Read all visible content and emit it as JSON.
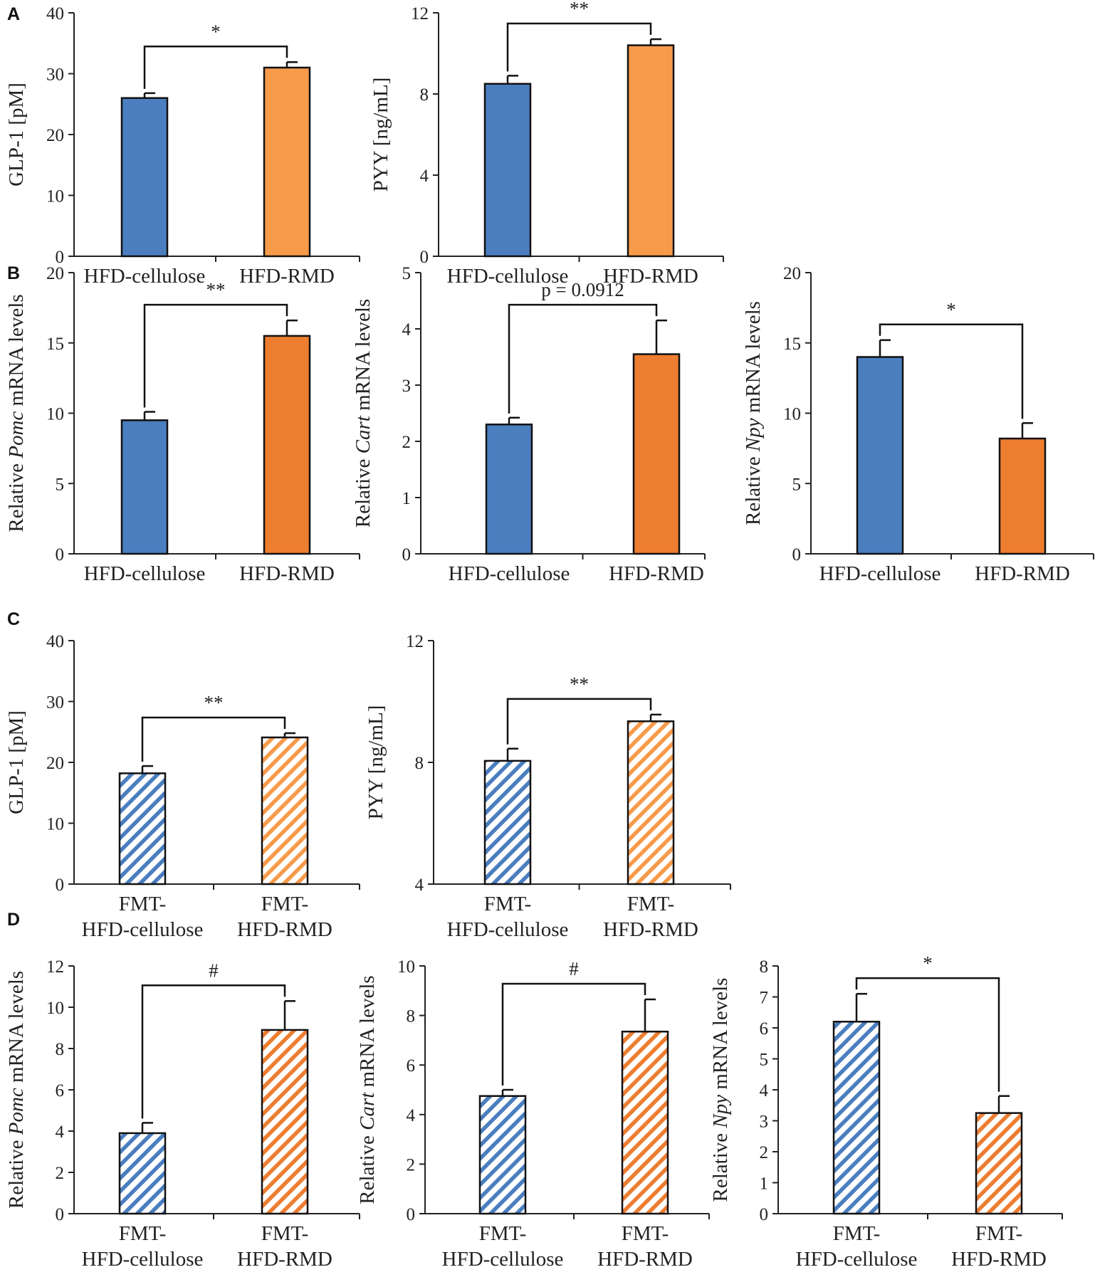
{
  "panel_labels": [
    "A",
    "B",
    "C",
    "D"
  ],
  "colors": {
    "blue": "#4a7ebf",
    "orange_light": "#f79a4a",
    "orange": "#ed7d31",
    "axis": "#000000"
  },
  "chart_data": [
    {
      "panel": "A",
      "type": "bar",
      "categories": [
        "HFD-cellulose",
        "HFD-RMD"
      ],
      "values": [
        26,
        31
      ],
      "errors": [
        0.8,
        0.9
      ],
      "fill": "solid",
      "colors": [
        "#4a7ebf",
        "#f79a4a"
      ],
      "ylabel": [
        "GLP-1 [pM]"
      ],
      "ylim": [
        0,
        40
      ],
      "yticks": [
        0,
        10,
        20,
        30,
        40
      ],
      "significance": "*",
      "sig_style": "bracket"
    },
    {
      "panel": "A",
      "type": "bar",
      "categories": [
        "HFD-cellulose",
        "HFD-RMD"
      ],
      "values": [
        8.5,
        10.4
      ],
      "errors": [
        0.4,
        0.3
      ],
      "fill": "solid",
      "colors": [
        "#4a7ebf",
        "#f79a4a"
      ],
      "ylabel": [
        "PYY [ng/mL]"
      ],
      "ylim": [
        0,
        12
      ],
      "yticks": [
        0,
        4,
        8,
        12
      ],
      "significance": "**",
      "sig_style": "bracket"
    },
    {
      "panel": "B",
      "type": "bar",
      "categories": [
        "HFD-cellulose",
        "HFD-RMD"
      ],
      "values": [
        9.5,
        15.5
      ],
      "errors": [
        0.6,
        1.1
      ],
      "fill": "solid",
      "colors": [
        "#4a7ebf",
        "#ed7d31"
      ],
      "ylabel": [
        "Relative ",
        "Pomc",
        " mRNA levels"
      ],
      "ylim": [
        0,
        20
      ],
      "yticks": [
        0,
        5,
        10,
        15,
        20
      ],
      "significance": "**",
      "sig_style": "bracket"
    },
    {
      "panel": "B",
      "type": "bar",
      "categories": [
        "HFD-cellulose",
        "HFD-RMD"
      ],
      "values": [
        2.3,
        3.55
      ],
      "errors": [
        0.12,
        0.6
      ],
      "fill": "solid",
      "colors": [
        "#4a7ebf",
        "#ed7d31"
      ],
      "ylabel": [
        "Relative ",
        "Cart",
        " mRNA levels"
      ],
      "ylim": [
        0,
        5
      ],
      "yticks": [
        0,
        1,
        2,
        3,
        4,
        5
      ],
      "significance": "p = 0.0912",
      "sig_style": "bracket"
    },
    {
      "panel": "B",
      "type": "bar",
      "categories": [
        "HFD-cellulose",
        "HFD-RMD"
      ],
      "values": [
        14,
        8.2
      ],
      "errors": [
        1.2,
        1.1
      ],
      "fill": "solid",
      "colors": [
        "#4a7ebf",
        "#ed7d31"
      ],
      "ylabel": [
        "Relative ",
        "Npy",
        " mRNA levels"
      ],
      "ylim": [
        0,
        20
      ],
      "yticks": [
        0,
        5,
        10,
        15,
        20
      ],
      "significance": "*",
      "sig_style": "bracket"
    },
    {
      "panel": "C",
      "type": "bar",
      "categories": [
        [
          "FMT-",
          "HFD-cellulose"
        ],
        [
          "FMT-",
          "HFD-RMD"
        ]
      ],
      "values": [
        18.2,
        24.1
      ],
      "errors": [
        1.2,
        0.7
      ],
      "fill": "hatched",
      "colors": [
        "#4a7ebf",
        "#f79a4a"
      ],
      "ylabel": [
        "GLP-1 [pM]"
      ],
      "ylim": [
        0,
        40
      ],
      "yticks": [
        0,
        10,
        20,
        30,
        40
      ],
      "significance": "**",
      "sig_style": "bracket"
    },
    {
      "panel": "C",
      "type": "bar",
      "categories": [
        [
          "FMT-",
          "HFD-cellulose"
        ],
        [
          "FMT-",
          "HFD-RMD"
        ]
      ],
      "values": [
        8.05,
        9.35
      ],
      "errors": [
        0.4,
        0.22
      ],
      "fill": "hatched",
      "colors": [
        "#4a7ebf",
        "#f79a4a"
      ],
      "ylabel": [
        "PYY [ng/mL]"
      ],
      "ylim": [
        4,
        12
      ],
      "yticks": [
        4,
        8,
        12
      ],
      "significance": "**",
      "sig_style": "bracket"
    },
    {
      "panel": "D",
      "type": "bar",
      "categories": [
        [
          "FMT-",
          "HFD-cellulose"
        ],
        [
          "FMT-",
          "HFD-RMD"
        ]
      ],
      "values": [
        3.9,
        8.9
      ],
      "errors": [
        0.5,
        1.4
      ],
      "fill": "hatched",
      "colors": [
        "#4a7ebf",
        "#ed7d31"
      ],
      "ylabel": [
        "Relative ",
        "Pomc",
        " mRNA levels"
      ],
      "ylim": [
        0,
        12
      ],
      "yticks": [
        0,
        2,
        4,
        6,
        8,
        10,
        12
      ],
      "significance": "#",
      "sig_style": "bracket"
    },
    {
      "panel": "D",
      "type": "bar",
      "categories": [
        [
          "FMT-",
          "HFD-cellulose"
        ],
        [
          "FMT-",
          "HFD-RMD"
        ]
      ],
      "values": [
        4.75,
        7.35
      ],
      "errors": [
        0.25,
        1.3
      ],
      "fill": "hatched",
      "colors": [
        "#4a7ebf",
        "#ed7d31"
      ],
      "ylabel": [
        "Relative ",
        "Cart",
        " mRNA levels"
      ],
      "ylim": [
        0,
        10
      ],
      "yticks": [
        0,
        2,
        4,
        6,
        8,
        10
      ],
      "significance": "#",
      "sig_style": "bracket"
    },
    {
      "panel": "D",
      "type": "bar",
      "categories": [
        [
          "FMT-",
          "HFD-cellulose"
        ],
        [
          "FMT-",
          "HFD-RMD"
        ]
      ],
      "values": [
        6.2,
        3.25
      ],
      "errors": [
        0.9,
        0.55
      ],
      "fill": "hatched",
      "colors": [
        "#4a7ebf",
        "#ed7d31"
      ],
      "ylabel": [
        "Relative ",
        "Npy",
        " mRNA levels"
      ],
      "ylim": [
        0,
        8
      ],
      "yticks": [
        0,
        1,
        2,
        3,
        4,
        5,
        6,
        7,
        8
      ],
      "significance": "*",
      "sig_style": "bracket"
    }
  ]
}
